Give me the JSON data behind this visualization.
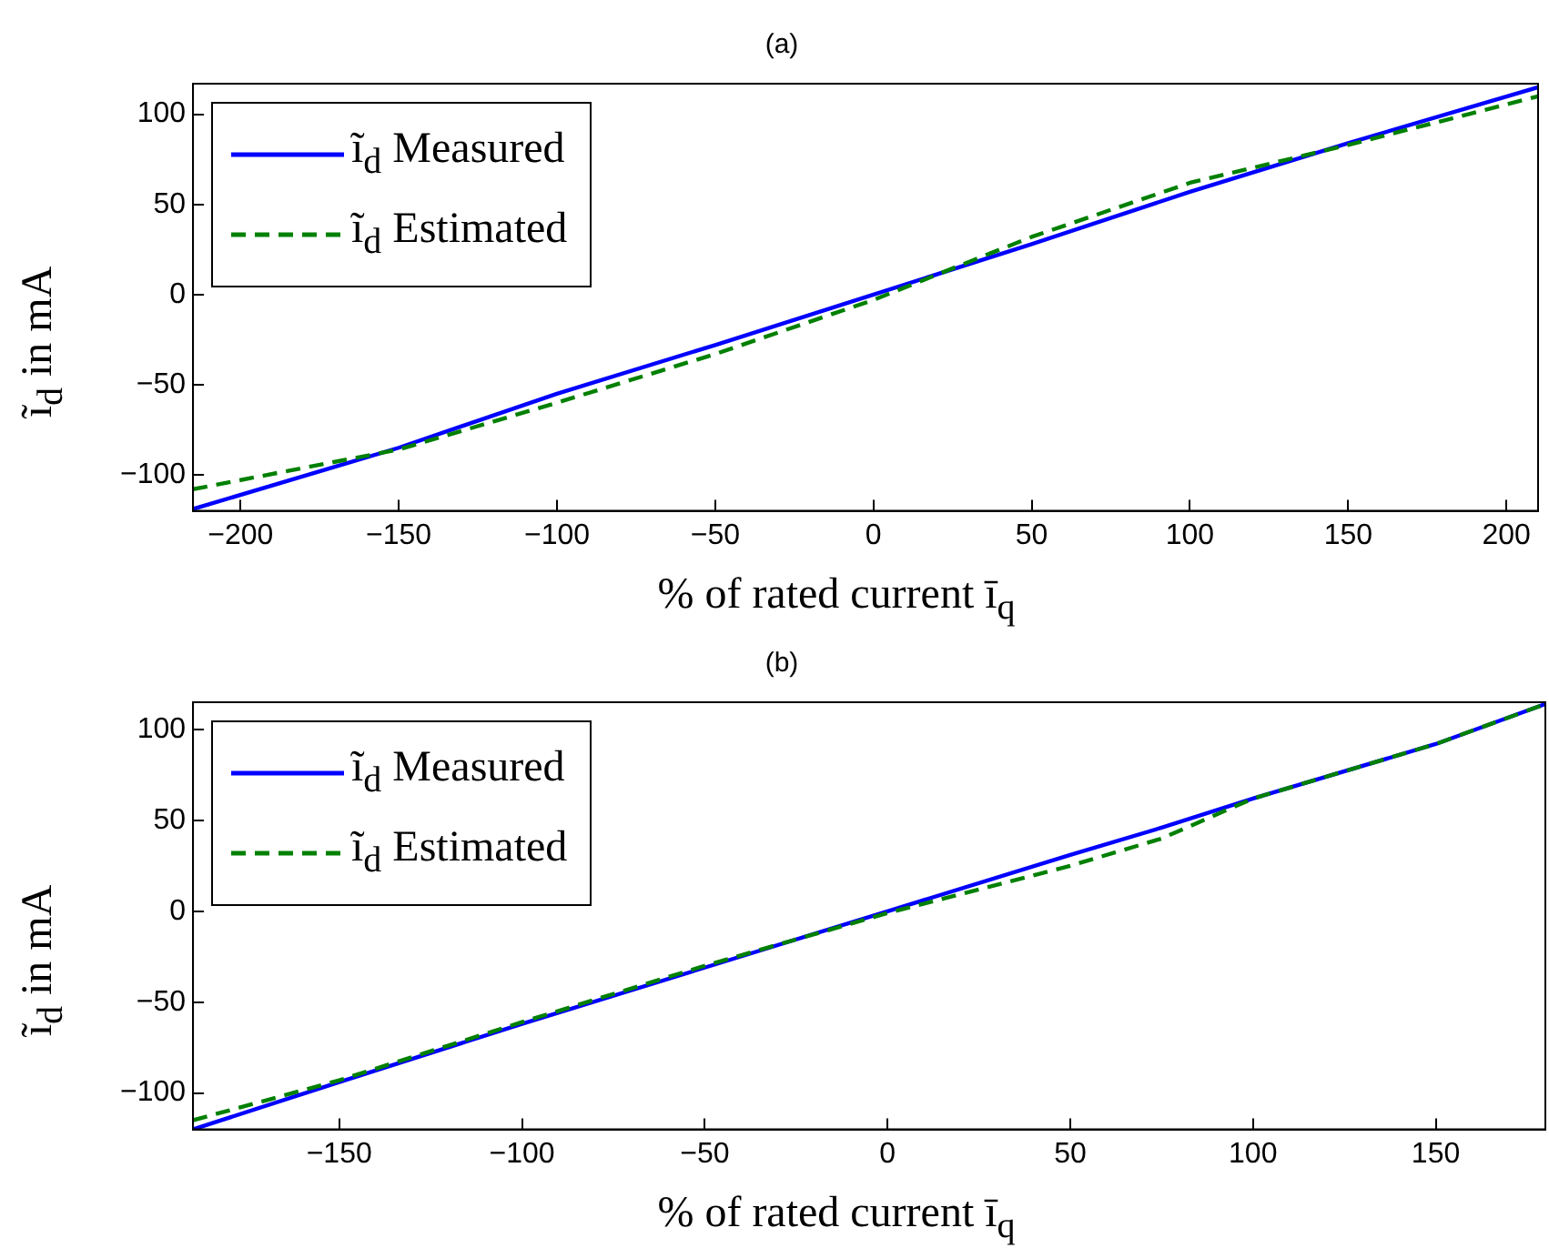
{
  "chart_data": [
    {
      "type": "line",
      "title": "(a)",
      "xlabel": "% of rated current ī$_{q}$",
      "ylabel": "ĩ$_{d}$ in mA",
      "xlim": [
        -215,
        210
      ],
      "ylim": [
        -120,
        117
      ],
      "xticks": [
        -200,
        -150,
        -100,
        -50,
        0,
        50,
        100,
        150,
        200
      ],
      "yticks": [
        -100,
        -50,
        0,
        50,
        100
      ],
      "grid": false,
      "legend": "top left",
      "marker": "none",
      "series": [
        {
          "name": "ĩ$_{d}$ Measured",
          "color": "#0000ff",
          "line_style": "solid",
          "x": [
            -215,
            -150,
            -100,
            -50,
            0,
            50,
            100,
            150,
            210
          ],
          "values": [
            -119,
            -85,
            -55,
            -28,
            0,
            28,
            57,
            84,
            115
          ]
        },
        {
          "name": "ĩ$_{d}$ Estimated",
          "color": "#008000",
          "line_style": "dashed",
          "x": [
            -215,
            -150,
            -100,
            -50,
            0,
            50,
            100,
            150,
            210
          ],
          "values": [
            -108,
            -86,
            -60,
            -33,
            -3,
            32,
            62,
            83,
            110
          ]
        }
      ]
    },
    {
      "type": "line",
      "title": "(b)",
      "xlabel": "% of rated current ī$_{q}$",
      "ylabel": "ĩ$_{d}$ in mA",
      "xlim": [
        -190,
        180
      ],
      "ylim": [
        -120,
        115
      ],
      "xticks": [
        -150,
        -100,
        -50,
        0,
        50,
        100,
        150
      ],
      "yticks": [
        -100,
        -50,
        0,
        50,
        100
      ],
      "grid": false,
      "legend": "top left",
      "marker": "none",
      "series": [
        {
          "name": "ĩ$_{d}$ Measured",
          "color": "#0000ff",
          "line_style": "solid",
          "x": [
            -190,
            -150,
            -100,
            -50,
            0,
            50,
            75,
            100,
            150,
            180
          ],
          "values": [
            -120,
            -94,
            -62,
            -31,
            0,
            31,
            46,
            62,
            92,
            114
          ]
        },
        {
          "name": "ĩ$_{d}$ Estimated",
          "color": "#008000",
          "line_style": "dashed",
          "x": [
            -190,
            -150,
            -100,
            -50,
            0,
            50,
            75,
            100,
            150,
            180
          ],
          "values": [
            -115,
            -93,
            -61,
            -30,
            -1,
            25,
            40,
            62,
            92,
            114
          ]
        }
      ]
    }
  ]
}
